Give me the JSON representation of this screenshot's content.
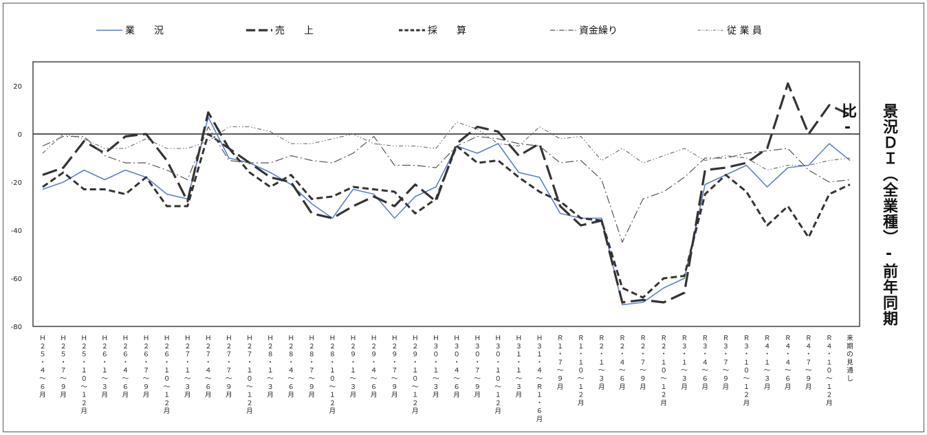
{
  "chart_data": {
    "type": "line",
    "ylabel": "景況ＤＩ（全業種）-前年同期比-",
    "ylim": [
      -80,
      30
    ],
    "yticks": [
      20,
      0,
      -20,
      -40,
      -60,
      -80
    ],
    "grid": false,
    "legend_position": "top",
    "categories": [
      "H25.4~6月",
      "H25.7~9月",
      "H25.10~12月",
      "H26.1~3月",
      "H26.4~6月",
      "H26.7~9月",
      "H26.10~12月",
      "H27.1~3月",
      "H27.4~6月",
      "H27.7~9月",
      "H27.10~12月",
      "H28.1~3月",
      "H28.4~6月",
      "H28.7~9月",
      "H28.10~12月",
      "H29.1~3月",
      "H29.4~6月",
      "H29.7~9月",
      "H29.10~12月",
      "H30.1~3月",
      "H30.4~6月",
      "H30.7~9月",
      "H30.10~12月",
      "H31.1~3月",
      "H31.4~R1.6月",
      "R1.7~9月",
      "R1.10~12月",
      "R2.1~3月",
      "R2.4~6月",
      "R2.7~9月",
      "R2.10~12月",
      "R3.1~3月",
      "R3.4~6月",
      "R3.7~9月",
      "R3.10~12月",
      "R4.1~3月",
      "R4.4~6月",
      "R4.7~9月",
      "R4.10~12月",
      "来期の見通し"
    ],
    "tick_labels": [
      "Ｈ２５・４〜６月",
      "Ｈ２５・７〜９月",
      "Ｈ２５・１０〜１２月",
      "Ｈ２６・１〜３月",
      "Ｈ２６・４〜６月",
      "Ｈ２６・７〜９月",
      "Ｈ２６・１０〜１２月",
      "Ｈ２７・１〜３月",
      "Ｈ２７・４〜６月",
      "Ｈ２７・７〜９月",
      "Ｈ２７・１０〜１２月",
      "Ｈ２８・１〜３月",
      "Ｈ２８・４〜６月",
      "Ｈ２８・７〜９月",
      "Ｈ２８・１０〜１２月",
      "Ｈ２９・１〜３月",
      "Ｈ２９・４〜６月",
      "Ｈ２９・７〜９月",
      "Ｈ２９・１０〜１２月",
      "Ｈ３０・１〜３月",
      "Ｈ３０・４〜６月",
      "Ｈ３０・７〜９月",
      "Ｈ３０・１０〜１２月",
      "Ｈ３１・１〜３月",
      "Ｈ３１・４〜Ｒ１・６月",
      "Ｒ１・７〜９月",
      "Ｒ１・１０〜１２月",
      "Ｒ２・１〜３月",
      "Ｒ２・４〜６月",
      "Ｒ２・７〜９月",
      "Ｒ２・１０〜１２月",
      "Ｒ３・１〜３月",
      "Ｒ３・４〜６月",
      "Ｒ３・７〜９月",
      "Ｒ３・１０〜１２月",
      "Ｒ４・１〜３月",
      "Ｒ４・４〜６月",
      "Ｒ４・７〜９月",
      "Ｒ４・１０〜１２月",
      "来期の見通し"
    ],
    "series": [
      {
        "name": "業　　況",
        "color": "#5b7fc7",
        "style": "solid-thin",
        "values": [
          -23,
          -20,
          -15,
          -19,
          -15,
          -18,
          -25,
          -27,
          7,
          -10,
          -12,
          -16,
          -21,
          -29,
          -35,
          -23,
          -25,
          -35,
          -26,
          -22,
          -5,
          -8,
          -4,
          -16,
          -18,
          -33,
          -35,
          -35,
          -71,
          -70,
          -64,
          -60,
          -21,
          -17,
          -13,
          -22,
          -14,
          -13,
          -4,
          -11
        ]
      },
      {
        "name": "売　　上",
        "color": "#333333",
        "style": "long-dash",
        "values": [
          -17,
          -14,
          -3,
          -8,
          -1,
          0,
          -11,
          -28,
          9,
          -6,
          -12,
          -18,
          -20,
          -33,
          -35,
          -30,
          -26,
          -30,
          -21,
          -28,
          -4,
          3,
          1,
          -9,
          -4,
          -30,
          -38,
          -36,
          -70,
          -69,
          -70,
          -66,
          -15,
          -14,
          -12,
          -6,
          21,
          0,
          12,
          8
        ]
      },
      {
        "name": "採　　算",
        "color": "#333333",
        "style": "dash",
        "values": [
          -22,
          -16,
          -23,
          -23,
          -25,
          -18,
          -30,
          -30,
          0,
          -6,
          -16,
          -22,
          -17,
          -27,
          -26,
          -22,
          -23,
          -24,
          -33,
          -27,
          -5,
          -12,
          -11,
          -18,
          -24,
          -28,
          -35,
          -36,
          -64,
          -68,
          -60,
          -59,
          -25,
          -17,
          -24,
          -38,
          -30,
          -43,
          -25,
          -21
        ]
      },
      {
        "name": "資金繰り",
        "color": "#555555",
        "style": "dash-dot",
        "values": [
          -5,
          -1,
          -1,
          -9,
          -12,
          -12,
          -15,
          -19,
          3,
          -11,
          -12,
          -12,
          -9,
          -11,
          -12,
          -8,
          -1,
          -13,
          -13,
          -14,
          -5,
          -1,
          -2,
          -4,
          -5,
          -12,
          -11,
          -19,
          -45,
          -27,
          -24,
          -18,
          -10,
          -10,
          -8,
          -7,
          -6,
          -15,
          -20,
          -19
        ]
      },
      {
        "name": "従 業 員",
        "color": "#666666",
        "style": "dash-dot-dot",
        "values": [
          -8,
          0,
          -2,
          -6,
          -6,
          -2,
          -6,
          -6,
          -3,
          3,
          3,
          1,
          -4,
          -4,
          -2,
          0,
          -4,
          -5,
          -5,
          -6,
          5,
          2,
          -4,
          -5,
          3,
          -2,
          -1,
          -11,
          -6,
          -12,
          -9,
          -6,
          -11,
          -9,
          -10,
          -15,
          -13,
          -13,
          -11,
          -10
        ]
      }
    ]
  }
}
